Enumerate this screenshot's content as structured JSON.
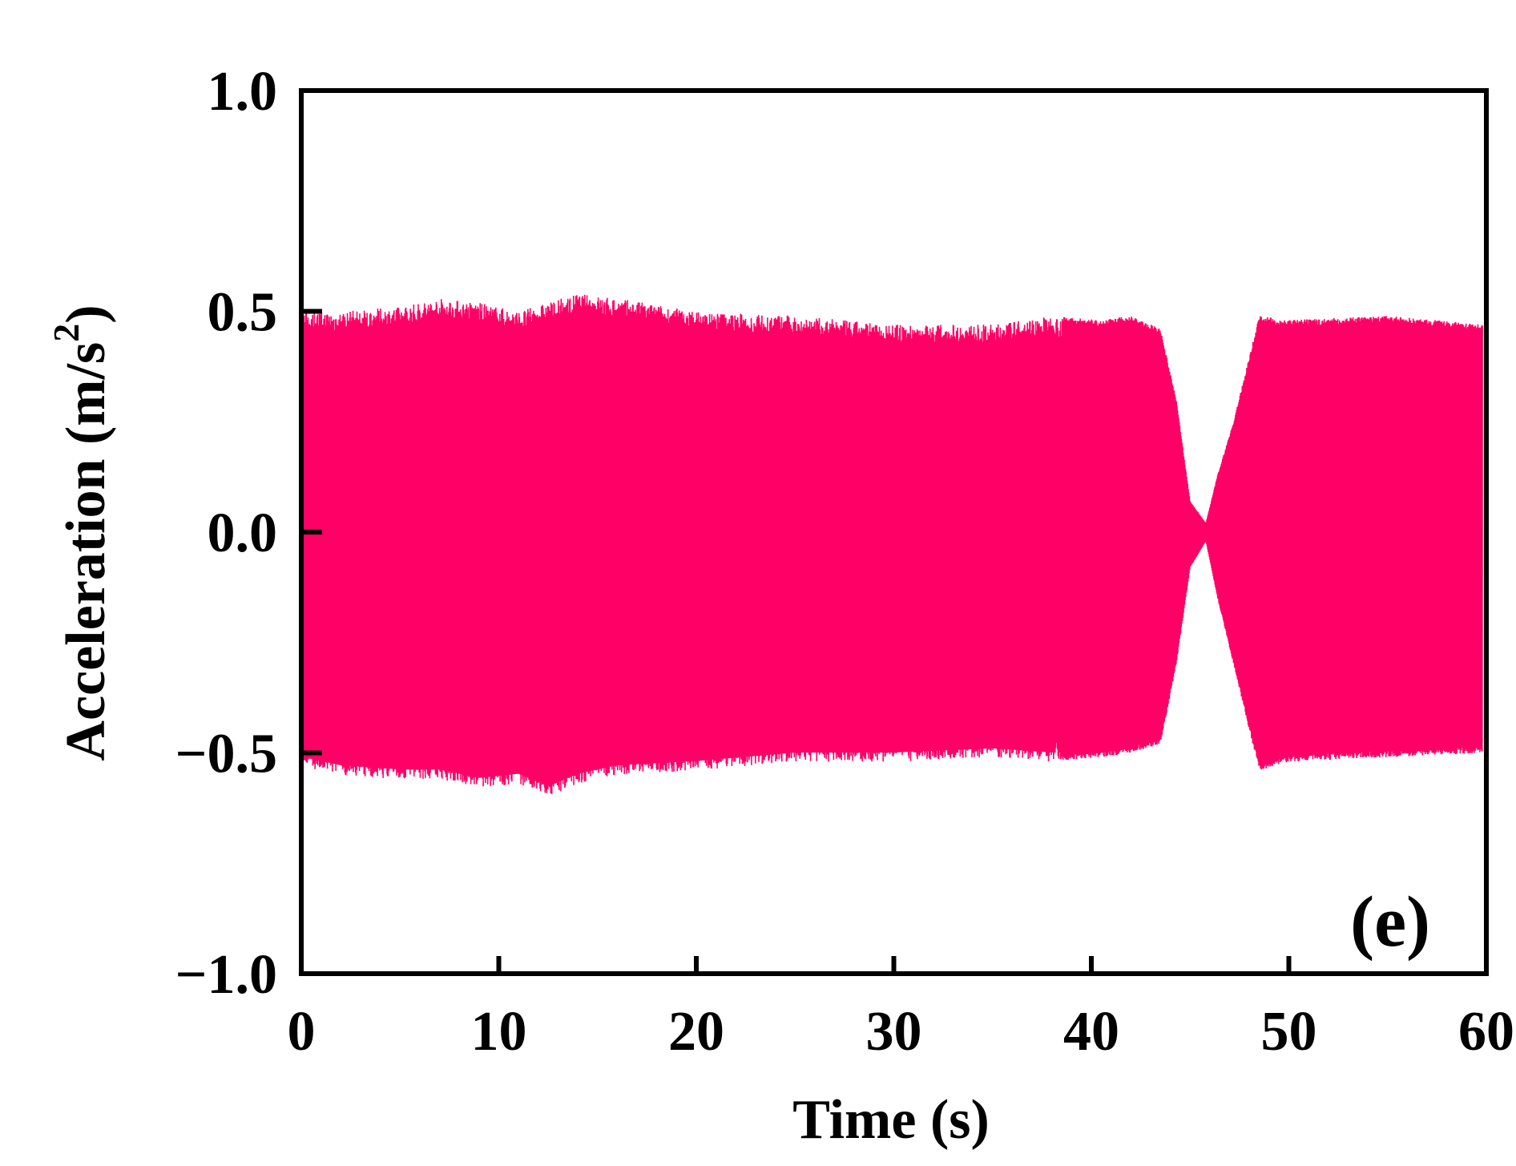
{
  "chart_data": {
    "type": "line",
    "title": "",
    "xlabel": "Time (s)",
    "ylabel_main": "Acceleration (m/s",
    "ylabel_sup": "2",
    "ylabel_close": ")",
    "panel_label": "(e)",
    "xlim": [
      0,
      60
    ],
    "ylim": [
      -1.0,
      1.0
    ],
    "xticks": [
      "0",
      "10",
      "20",
      "30",
      "40",
      "50",
      "60"
    ],
    "xtick_values": [
      0,
      10,
      20,
      30,
      40,
      50,
      60
    ],
    "yticks": [
      "1.0",
      "0.5",
      "0.0",
      "−0.5",
      "−1.0"
    ],
    "ytick_values": [
      1.0,
      0.5,
      0.0,
      -0.5,
      -1.0
    ],
    "grid": false,
    "series": [
      {
        "color": "#ff0066",
        "t_start": 0,
        "t_end": 59.8,
        "envelope": [
          {
            "t": 0.0,
            "upper": 0.5,
            "lower": -0.53
          },
          {
            "t": 2.0,
            "upper": 0.5,
            "lower": -0.55
          },
          {
            "t": 5.0,
            "upper": 0.51,
            "lower": -0.56
          },
          {
            "t": 7.0,
            "upper": 0.53,
            "lower": -0.56
          },
          {
            "t": 9.0,
            "upper": 0.52,
            "lower": -0.58
          },
          {
            "t": 11.0,
            "upper": 0.5,
            "lower": -0.57
          },
          {
            "t": 12.5,
            "upper": 0.52,
            "lower": -0.6
          },
          {
            "t": 14.0,
            "upper": 0.54,
            "lower": -0.57
          },
          {
            "t": 16.0,
            "upper": 0.53,
            "lower": -0.55
          },
          {
            "t": 20.0,
            "upper": 0.5,
            "lower": -0.54
          },
          {
            "t": 25.0,
            "upper": 0.49,
            "lower": -0.52
          },
          {
            "t": 30.0,
            "upper": 0.47,
            "lower": -0.52
          },
          {
            "t": 35.0,
            "upper": 0.47,
            "lower": -0.51
          },
          {
            "t": 38.0,
            "upper": 0.49,
            "lower": -0.52
          },
          {
            "t": 40.5,
            "upper": 0.48,
            "lower": -0.51
          },
          {
            "t": 42.0,
            "upper": 0.49,
            "lower": -0.5
          },
          {
            "t": 43.5,
            "upper": 0.46,
            "lower": -0.48
          },
          {
            "t": 44.3,
            "upper": 0.3,
            "lower": -0.3
          },
          {
            "t": 45.0,
            "upper": 0.07,
            "lower": -0.08
          },
          {
            "t": 45.8,
            "upper": 0.02,
            "lower": -0.02
          },
          {
            "t": 46.4,
            "upper": 0.13,
            "lower": -0.15
          },
          {
            "t": 47.2,
            "upper": 0.25,
            "lower": -0.3
          },
          {
            "t": 48.5,
            "upper": 0.49,
            "lower": -0.54
          },
          {
            "t": 50.0,
            "upper": 0.48,
            "lower": -0.52
          },
          {
            "t": 55.0,
            "upper": 0.49,
            "lower": -0.51
          },
          {
            "t": 59.8,
            "upper": 0.47,
            "lower": -0.5
          }
        ]
      }
    ]
  }
}
